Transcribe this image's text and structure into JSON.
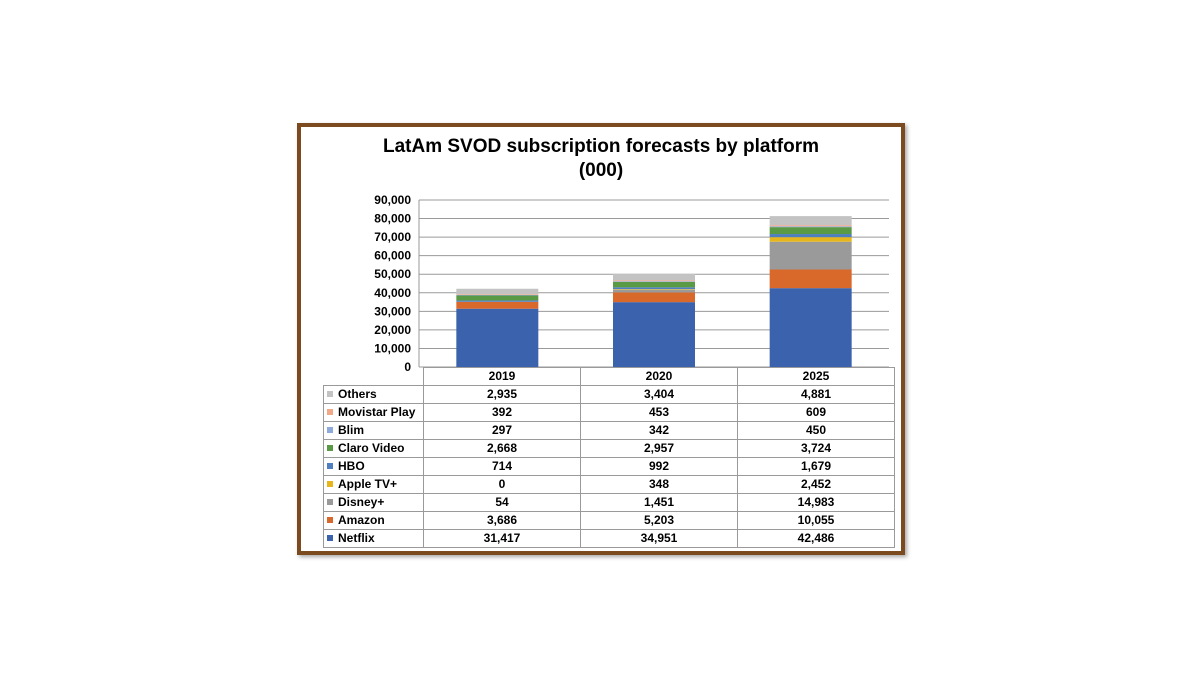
{
  "chart_data": {
    "type": "bar",
    "stacked": true,
    "title_lines": [
      "LatAm SVOD subscription forecasts by platform",
      "(000)"
    ],
    "categories": [
      "2019",
      "2020",
      "2025"
    ],
    "ylim": [
      0,
      90000
    ],
    "yticks": [
      "0",
      "10,000",
      "20,000",
      "30,000",
      "40,000",
      "50,000",
      "60,000",
      "70,000",
      "80,000",
      "90,000"
    ],
    "grid": true,
    "legend": "data-table",
    "series": [
      {
        "name": "Netflix",
        "color": "#3b62ad",
        "values": [
          31417,
          34951,
          42486
        ],
        "labels": [
          "31,417",
          "34,951",
          "42,486"
        ]
      },
      {
        "name": "Amazon",
        "color": "#d9692a",
        "values": [
          3686,
          5203,
          10055
        ],
        "labels": [
          "3,686",
          "5,203",
          "10,055"
        ]
      },
      {
        "name": "Disney+",
        "color": "#9a9a9a",
        "values": [
          54,
          1451,
          14983
        ],
        "labels": [
          "54",
          "1,451",
          "14,983"
        ]
      },
      {
        "name": "Apple TV+",
        "color": "#e6b61c",
        "values": [
          0,
          348,
          2452
        ],
        "labels": [
          "0",
          "348",
          "2,452"
        ]
      },
      {
        "name": "HBO",
        "color": "#4f7fbf",
        "values": [
          714,
          992,
          1679
        ],
        "labels": [
          "714",
          "992",
          "1,679"
        ]
      },
      {
        "name": "Claro Video",
        "color": "#5a9a45",
        "values": [
          2668,
          2957,
          3724
        ],
        "labels": [
          "2,668",
          "2,957",
          "3,724"
        ]
      },
      {
        "name": "Blim",
        "color": "#8eaadb",
        "values": [
          297,
          342,
          450
        ],
        "labels": [
          "297",
          "342",
          "450"
        ]
      },
      {
        "name": "Movistar Play",
        "color": "#f2a98a",
        "values": [
          392,
          453,
          609
        ],
        "labels": [
          "392",
          "453",
          "609"
        ]
      },
      {
        "name": "Others",
        "color": "#c3c3c3",
        "values": [
          2935,
          3404,
          4881
        ],
        "labels": [
          "2,935",
          "3,404",
          "4,881"
        ]
      }
    ]
  }
}
